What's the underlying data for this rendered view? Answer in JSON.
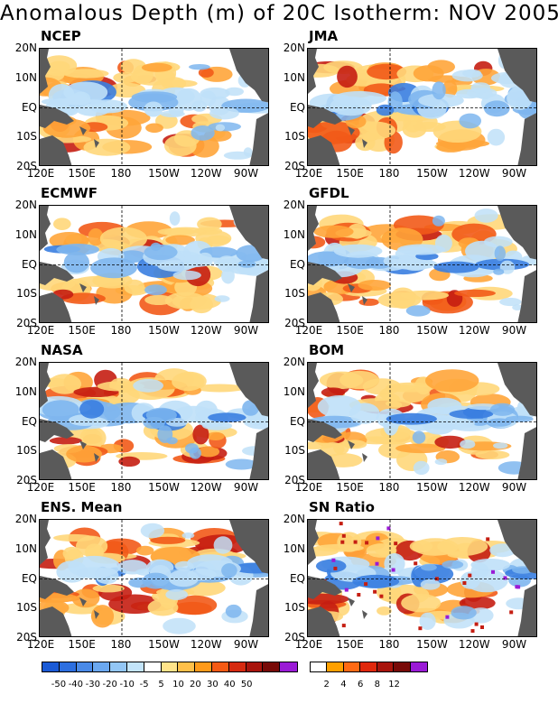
{
  "title": "Anomalous Depth (m) of 20C Isotherm: NOV 2005",
  "panels": [
    {
      "name": "NCEP"
    },
    {
      "name": "JMA"
    },
    {
      "name": "ECMWF"
    },
    {
      "name": "GFDL"
    },
    {
      "name": "NASA"
    },
    {
      "name": "BOM"
    },
    {
      "name": "ENS. Mean"
    },
    {
      "name": "SN Ratio"
    }
  ],
  "axes": {
    "lat_labels": [
      "20N",
      "10N",
      "EQ",
      "10S",
      "20S"
    ],
    "lon_labels": [
      "120E",
      "150E",
      "180",
      "150W",
      "120W",
      "90W"
    ]
  },
  "colorbar_anomaly": {
    "labels": [
      "-50",
      "-40",
      "-30",
      "-20",
      "-10",
      "-5",
      "5",
      "10",
      "20",
      "30",
      "40",
      "50"
    ],
    "colors": [
      "#1a5ad6",
      "#2d6fe0",
      "#4a8ae8",
      "#6ba8f0",
      "#93c6f5",
      "#c3e4fa",
      "#ffffff",
      "#ffe38a",
      "#ffc04a",
      "#ff9a1a",
      "#f55a14",
      "#d62a10",
      "#a8140c",
      "#780a08",
      "#9a1ad6"
    ]
  },
  "colorbar_sn": {
    "labels": [
      "2",
      "4",
      "6",
      "8",
      "12"
    ],
    "colors": [
      "#ffffff",
      "#ffa000",
      "#ff6a14",
      "#e0280c",
      "#a8140c",
      "#780a08",
      "#9a1ad6"
    ]
  },
  "colors": {
    "land": "#5a5a5a",
    "warm_light": "#ffd77a",
    "warm_mid": "#ffa53a",
    "warm_strong": "#f25a18",
    "warm_extreme": "#c51e12",
    "cool_light": "#bfe0f8",
    "cool_mid": "#7eb6ee",
    "cool_strong": "#3a7ee0",
    "purple": "#9a1ad6"
  }
}
